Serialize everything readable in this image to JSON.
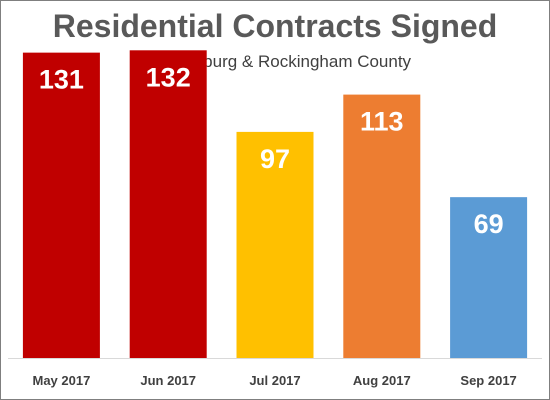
{
  "chart_data": {
    "type": "bar",
    "title": "Residential Contracts Signed",
    "subtitle": "Harrisonburg & Rockingham County",
    "categories": [
      "May 2017",
      "Jun 2017",
      "Jul 2017",
      "Aug 2017",
      "Sep 2017"
    ],
    "values": [
      131,
      132,
      97,
      113,
      69
    ],
    "colors": [
      "#c00000",
      "#c00000",
      "#ffc000",
      "#ed7d31",
      "#5b9bd5"
    ],
    "xlabel": "",
    "ylabel": "",
    "ylim": [
      0,
      145
    ],
    "grid": false,
    "legend": "none",
    "data_labels": true
  }
}
